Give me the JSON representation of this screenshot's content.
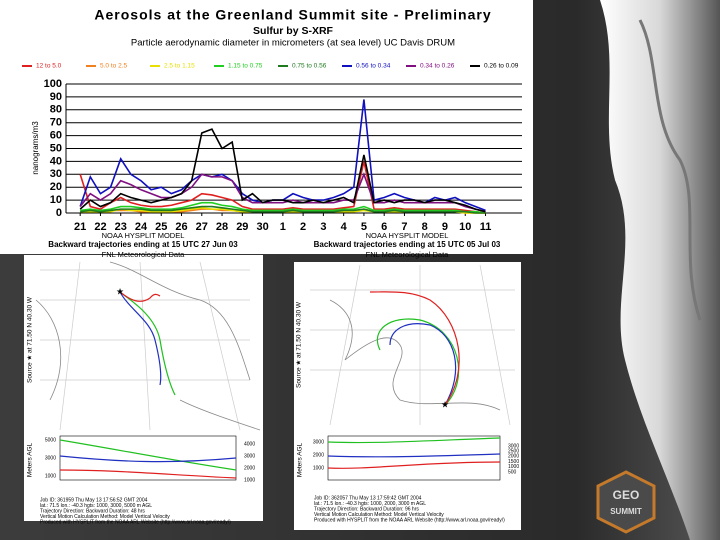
{
  "chart_data": {
    "type": "line",
    "title": "Aerosols at the Greenland Summit site - Preliminary",
    "subtitle": "Sulfur by S-XRF",
    "note": "Particle aerodynamic diameter in micrometers (at sea level) UC Davis DRUM",
    "y_label": "nanograms/m3",
    "grid": true,
    "legend": "top",
    "xlim": [
      -0.7,
      21.8
    ],
    "ylim": [
      0,
      100
    ],
    "yticks": [
      0,
      10,
      20,
      30,
      40,
      50,
      60,
      70,
      80,
      90,
      100
    ],
    "xticks": [
      {
        "value": 0,
        "label": "21"
      },
      {
        "value": 1,
        "label": "22"
      },
      {
        "value": 2,
        "label": "23"
      },
      {
        "value": 3,
        "label": "24"
      },
      {
        "value": 4,
        "label": "25"
      },
      {
        "value": 5,
        "label": "26"
      },
      {
        "value": 6,
        "label": "27"
      },
      {
        "value": 7,
        "label": "28"
      },
      {
        "value": 8,
        "label": "29"
      },
      {
        "value": 9,
        "label": "30"
      },
      {
        "value": 10,
        "label": "1"
      },
      {
        "value": 11,
        "label": "2"
      },
      {
        "value": 12,
        "label": "3"
      },
      {
        "value": 13,
        "label": "4"
      },
      {
        "value": 14,
        "label": "5"
      },
      {
        "value": 15,
        "label": "6"
      },
      {
        "value": 16,
        "label": "7"
      },
      {
        "value": 17,
        "label": "8"
      },
      {
        "value": 18,
        "label": "9"
      },
      {
        "value": 19,
        "label": "10"
      },
      {
        "value": 20,
        "label": "11"
      }
    ],
    "x": [
      0,
      0.5,
      1,
      1.5,
      2,
      2.5,
      3,
      3.5,
      4,
      4.5,
      5,
      5.5,
      6,
      6.5,
      7,
      7.5,
      8,
      8.5,
      9,
      9.5,
      10,
      10.5,
      11,
      11.5,
      12,
      12.5,
      13,
      13.5,
      14,
      14.5,
      15,
      15.5,
      16,
      16.5,
      17,
      17.5,
      18,
      18.5,
      19,
      19.5,
      20
    ],
    "series": [
      {
        "name": "12 to 5.0",
        "color": "#e02020",
        "values": [
          30,
          5,
          3,
          8,
          12,
          8,
          6,
          5,
          5,
          6,
          8,
          10,
          15,
          14,
          12,
          10,
          5,
          3,
          3,
          3,
          3,
          4,
          3,
          3,
          3,
          3,
          4,
          5,
          40,
          3,
          3,
          4,
          3,
          3,
          3,
          3,
          3,
          3,
          2,
          1,
          0
        ]
      },
      {
        "name": "5.0 to 2.5",
        "color": "#f08020",
        "values": [
          1,
          2,
          1,
          2,
          2,
          2,
          1,
          1,
          1,
          1,
          1,
          2,
          3,
          3,
          2,
          2,
          1,
          1,
          1,
          1,
          1,
          1,
          1,
          1,
          1,
          1,
          1,
          1,
          3,
          1,
          1,
          1,
          1,
          1,
          1,
          1,
          1,
          1,
          0,
          0,
          0
        ]
      },
      {
        "name": "2.5 to 1.15",
        "color": "#e8e000",
        "values": [
          1,
          1,
          1,
          1,
          3,
          2,
          2,
          1,
          1,
          1,
          2,
          3,
          4,
          3,
          3,
          2,
          1,
          1,
          1,
          1,
          1,
          1,
          1,
          1,
          1,
          1,
          1,
          1,
          2,
          1,
          1,
          1,
          1,
          1,
          1,
          1,
          1,
          1,
          0,
          0,
          0
        ]
      },
      {
        "name": "1.15 to 0.75",
        "color": "#20d020",
        "values": [
          2,
          3,
          2,
          3,
          5,
          5,
          4,
          3,
          3,
          3,
          4,
          6,
          8,
          8,
          6,
          5,
          3,
          2,
          2,
          2,
          2,
          3,
          2,
          2,
          2,
          2,
          3,
          3,
          5,
          2,
          2,
          3,
          2,
          2,
          2,
          2,
          2,
          2,
          1,
          1,
          0
        ]
      },
      {
        "name": "0.75 to 0.56",
        "color": "#207a20",
        "values": [
          1,
          2,
          1,
          2,
          3,
          3,
          3,
          2,
          2,
          2,
          3,
          4,
          5,
          5,
          4,
          3,
          2,
          1,
          1,
          1,
          1,
          2,
          1,
          1,
          1,
          1,
          2,
          2,
          3,
          1,
          1,
          2,
          1,
          1,
          1,
          1,
          1,
          1,
          1,
          0,
          0
        ]
      },
      {
        "name": "0.56 to 0.34",
        "color": "#1010c0",
        "values": [
          5,
          28,
          15,
          20,
          42,
          30,
          25,
          18,
          20,
          15,
          18,
          25,
          30,
          28,
          30,
          25,
          15,
          10,
          8,
          10,
          10,
          15,
          12,
          10,
          10,
          12,
          15,
          20,
          88,
          10,
          12,
          15,
          12,
          10,
          8,
          12,
          10,
          12,
          8,
          5,
          2
        ]
      },
      {
        "name": "0.34 to 0.26",
        "color": "#801080",
        "values": [
          5,
          15,
          10,
          15,
          25,
          22,
          18,
          15,
          12,
          12,
          15,
          20,
          30,
          28,
          28,
          25,
          12,
          8,
          8,
          8,
          8,
          10,
          8,
          8,
          8,
          8,
          10,
          10,
          30,
          8,
          8,
          10,
          8,
          8,
          8,
          8,
          8,
          8,
          5,
          3,
          1
        ]
      },
      {
        "name": "0.26 to 0.09",
        "color": "#000000",
        "values": [
          3,
          10,
          5,
          8,
          15,
          12,
          10,
          8,
          10,
          12,
          15,
          25,
          62,
          65,
          50,
          55,
          10,
          15,
          8,
          10,
          10,
          8,
          8,
          10,
          8,
          10,
          12,
          8,
          45,
          8,
          10,
          8,
          10,
          10,
          8,
          10,
          10,
          8,
          6,
          3,
          1
        ]
      }
    ]
  },
  "panels": [
    {
      "model": "NOAA HYSPLIT MODEL",
      "title": "Backward trajectories ending at 15 UTC 27 Jun 03",
      "data": "FNL Meteorological Data",
      "source": "Source ★ at 71.50 N 40.30 W",
      "y_label": "Meters AGL",
      "alt_left": [
        "5000",
        "3000",
        "1000"
      ],
      "alt_right": [
        "4000",
        "3000",
        "2000",
        "1000"
      ],
      "footer": [
        "Job ID: 361959    Thu May 13 17:56:52 GMT 2004",
        "lat.: 71.5  lon.: -40.3  hgts: 1000, 3000, 5000 m AGL",
        "Trajectory Direction: Backward    Duration: 48 hrs",
        "Vertical Motion Calculation Method: Model Vertical Velocity",
        "Produced with HYSPLIT from the NOAA ARL Website (http://www.arl.noaa.gov/ready/)"
      ]
    },
    {
      "model": "NOAA HYSPLIT MODEL",
      "title": "Backward trajectories ending at 15 UTC 05 Jul 03",
      "data": "FNL Meteorological Data",
      "source": "Source ★ at 71.50 N 40.30 W",
      "y_label": "Meters AGL",
      "alt_left": [
        "3000",
        "2000",
        "1000"
      ],
      "alt_right": [
        "3000",
        "2500",
        "2000",
        "1500",
        "1000",
        "500"
      ],
      "footer": [
        "Job ID: 362057    Thu May 13 17:59:42 GMT 2004",
        "lat.: 71.5  lon.: -40.3  hgts: 1000, 2000, 3000 m AGL",
        "Trajectory Direction: Backward    Duration: 96 hrs",
        "Vertical Motion Calculation Method: Model Vertical Velocity",
        "Produced with HYSPLIT from the NOAA ARL Website (http://www.arl.noaa.gov/ready/)"
      ]
    }
  ],
  "logo": {
    "line1": "GEO",
    "line2": "SUMMIT"
  }
}
